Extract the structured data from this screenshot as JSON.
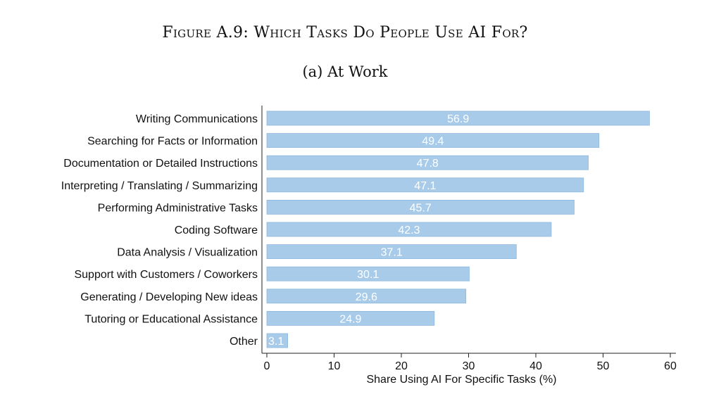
{
  "figure": {
    "title": "Figure A.9: Which Tasks Do People Use AI For?",
    "subtitle": "(a) At Work"
  },
  "chart_data": {
    "type": "bar",
    "orientation": "horizontal",
    "categories": [
      "Writing Communications",
      "Searching for Facts or Information",
      "Documentation or Detailed Instructions",
      "Interpreting / Translating / Summarizing",
      "Performing Administrative Tasks",
      "Coding Software",
      "Data Analysis / Visualization",
      "Support with Customers / Coworkers",
      "Generating / Developing New ideas",
      "Tutoring or Educational Assistance",
      "Other"
    ],
    "values": [
      56.9,
      49.4,
      47.8,
      47.1,
      45.7,
      42.3,
      37.1,
      30.1,
      29.6,
      24.9,
      3.1
    ],
    "value_labels": [
      "56.9",
      "49.4",
      "47.8",
      "47.1",
      "45.7",
      "42.3",
      "37.1",
      "30.1",
      "29.6",
      "24.9",
      "3.1"
    ],
    "xlabel": "Share Using AI For Specific Tasks (%)",
    "xlim": [
      0,
      60
    ],
    "xticks": [
      0,
      10,
      20,
      30,
      40,
      50,
      60
    ],
    "bar_color": "#a8cbe9",
    "bar_edge_color": "#8db8de",
    "grid": false,
    "legend": "none"
  }
}
